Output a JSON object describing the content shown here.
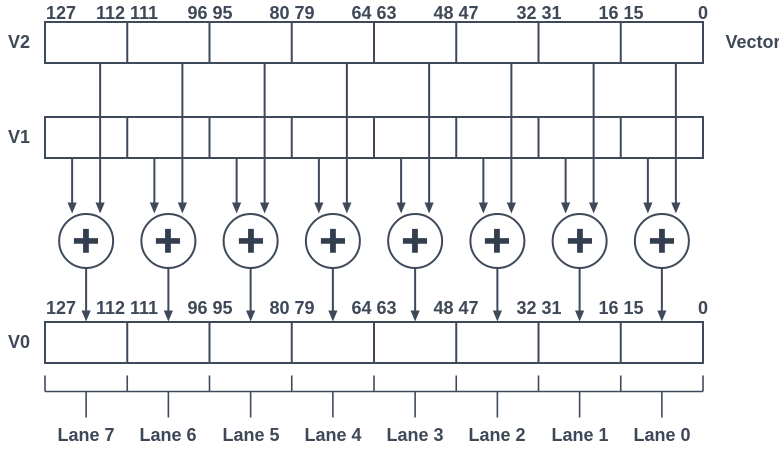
{
  "colors": {
    "background": "#ffffff",
    "stroke": "#3e4a59",
    "text": "#3f4857",
    "adder": "#333e4e"
  },
  "vector_caption": "Vector",
  "registers": {
    "v2": "V2",
    "v1": "V1",
    "v0": "V0"
  },
  "adder": {
    "symbol": "+"
  },
  "bit_labels_top": [
    "127",
    "112 111",
    "96 95",
    "80 79",
    "64 63",
    "48 47",
    "32 31",
    "16 15",
    "0"
  ],
  "bit_labels_result": [
    "127",
    "112 111",
    "96 95",
    "80 79",
    "64 63",
    "48 47",
    "32 31",
    "16 15",
    "0"
  ],
  "lanes": [
    "Lane 7",
    "Lane 6",
    "Lane 5",
    "Lane 4",
    "Lane 3",
    "Lane 2",
    "Lane 1",
    "Lane 0"
  ]
}
